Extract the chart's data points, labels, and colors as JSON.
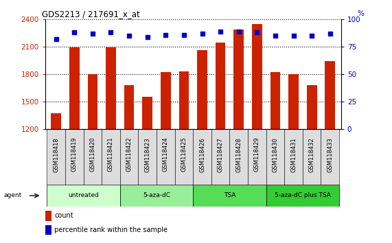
{
  "title": "GDS2213 / 217691_x_at",
  "categories": [
    "GSM118418",
    "GSM118419",
    "GSM118420",
    "GSM118421",
    "GSM118422",
    "GSM118423",
    "GSM118424",
    "GSM118425",
    "GSM118426",
    "GSM118427",
    "GSM118428",
    "GSM118429",
    "GSM118430",
    "GSM118431",
    "GSM118432",
    "GSM118433"
  ],
  "counts": [
    1370,
    2090,
    1800,
    2095,
    1680,
    1550,
    1820,
    1830,
    2060,
    2150,
    2290,
    2350,
    1820,
    1800,
    1680,
    1940
  ],
  "percentiles": [
    82,
    88,
    87,
    88,
    85,
    84,
    86,
    86,
    87,
    89,
    89,
    88,
    85,
    85,
    85,
    87
  ],
  "bar_color": "#CC2200",
  "dot_color": "#0000CC",
  "ylim_left": [
    1200,
    2400
  ],
  "ylim_right": [
    0,
    100
  ],
  "yticks_left": [
    1200,
    1500,
    1800,
    2100,
    2400
  ],
  "yticks_right": [
    0,
    25,
    50,
    75,
    100
  ],
  "groups": [
    {
      "label": "untreated",
      "start": 0,
      "end": 3,
      "color": "#CCFFCC"
    },
    {
      "label": "5-aza-dC",
      "start": 4,
      "end": 7,
      "color": "#99EE99"
    },
    {
      "label": "TSA",
      "start": 8,
      "end": 11,
      "color": "#55DD55"
    },
    {
      "label": "5-aza-dC plus TSA",
      "start": 12,
      "end": 15,
      "color": "#33CC33"
    }
  ],
  "agent_label": "agent",
  "legend_count_label": "count",
  "legend_percentile_label": "percentile rank within the sample",
  "background_color": "#FFFFFF",
  "tick_label_fontsize": 6.0,
  "axis_label_color_left": "#CC2200",
  "axis_label_color_right": "#0000CC",
  "ticklabel_bg": "#DDDDDD"
}
